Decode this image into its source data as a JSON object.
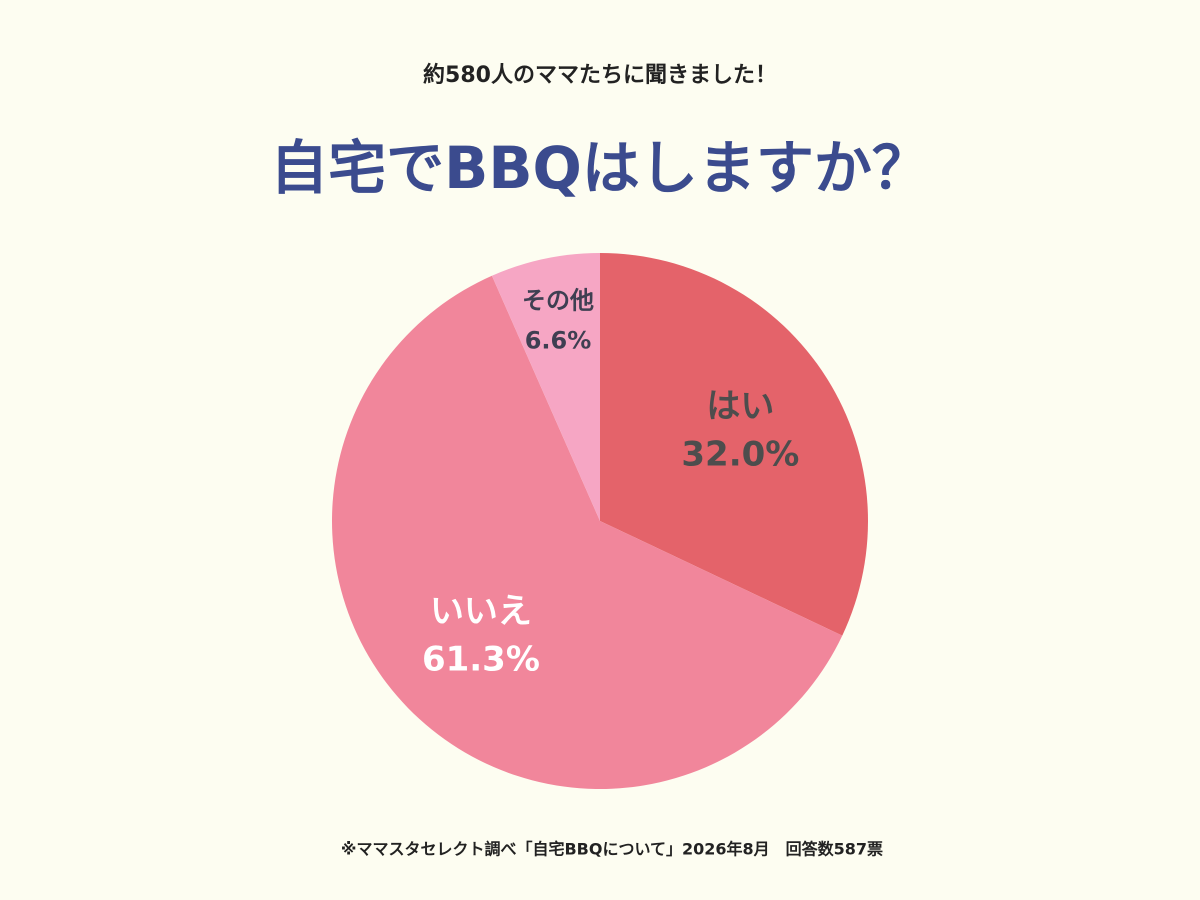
{
  "chart_data": {
    "type": "pie",
    "subtitle": "約580人のママたちに聞きました！",
    "title": "自宅でBBQはしますか？",
    "categories": [
      "はい",
      "いいえ",
      "その他"
    ],
    "values": [
      32.0,
      61.3,
      6.6
    ],
    "value_labels": [
      "32.0%",
      "61.3%",
      "6.6%"
    ],
    "colors": [
      "#e4636a",
      "#f1869b",
      "#f6a6c4"
    ],
    "label_colors": [
      "#4d4d4d",
      "#ffffff",
      "#3f3f52"
    ],
    "note": "※ママスタセレクト調べ「自宅BBQについて」2026年8月　回答数587票"
  }
}
